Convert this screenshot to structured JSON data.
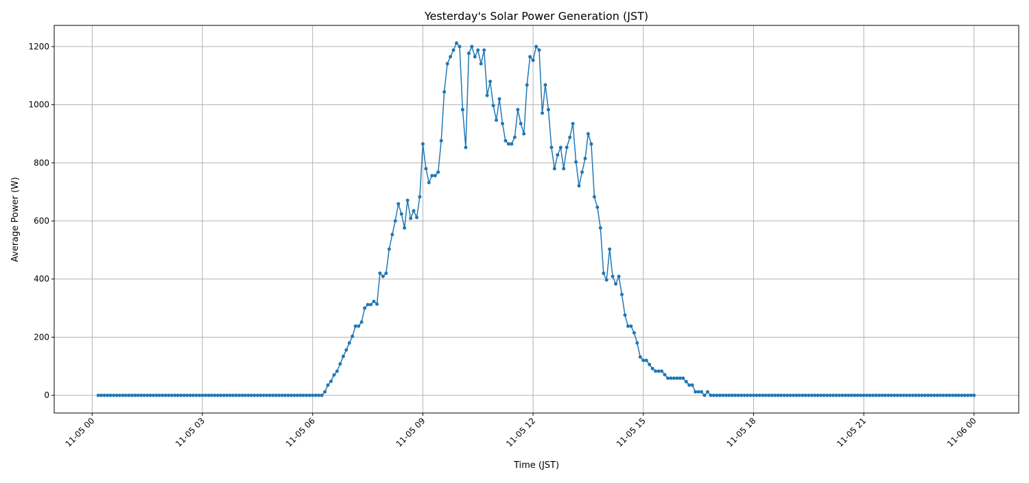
{
  "chart_data": {
    "type": "line",
    "title": "Yesterday's Solar Power Generation (JST)",
    "xlabel": "Time (JST)",
    "ylabel": "Average Power (W)",
    "x_start": "11-05 00:10",
    "x_interval_minutes": 5,
    "xlim": [
      "11-04 22:58",
      "11-06 01:13"
    ],
    "ylim": [
      -61,
      1273
    ],
    "x_ticks": [
      "11-05 00",
      "11-05 03",
      "11-05 06",
      "11-05 09",
      "11-05 12",
      "11-05 15",
      "11-05 18",
      "11-05 21",
      "11-06 00"
    ],
    "y_ticks": [
      0,
      200,
      400,
      600,
      800,
      1000,
      1200
    ],
    "grid": true,
    "marker": "circle",
    "color": "#1f77b4",
    "series": [
      {
        "values": [
          0,
          0,
          0,
          0,
          0,
          0,
          0,
          0,
          0,
          0,
          0,
          0,
          0,
          0,
          0,
          0,
          0,
          0,
          0,
          0,
          0,
          0,
          0,
          0,
          0,
          0,
          0,
          0,
          0,
          0,
          0,
          0,
          0,
          0,
          0,
          0,
          0,
          0,
          0,
          0,
          0,
          0,
          0,
          0,
          0,
          0,
          0,
          0,
          0,
          0,
          0,
          0,
          0,
          0,
          0,
          0,
          0,
          0,
          0,
          0,
          0,
          0,
          0,
          0,
          0,
          0,
          0,
          0,
          0,
          0,
          0,
          0,
          0,
          0,
          12,
          35,
          48,
          70,
          83,
          108,
          134,
          156,
          180,
          203,
          238,
          238,
          252,
          300,
          312,
          312,
          323,
          314,
          420,
          409,
          420,
          503,
          553,
          600,
          659,
          624,
          576,
          671,
          609,
          635,
          612,
          683,
          865,
          780,
          732,
          756,
          756,
          768,
          876,
          1044,
          1141,
          1165,
          1188,
          1212,
          1200,
          983,
          853,
          1177,
          1200,
          1165,
          1188,
          1141,
          1188,
          1032,
          1080,
          997,
          947,
          1020,
          935,
          876,
          865,
          865,
          888,
          983,
          935,
          900,
          1068,
          1165,
          1153,
          1200,
          1188,
          971,
          1068,
          983,
          853,
          780,
          827,
          853,
          780,
          853,
          888,
          935,
          803,
          721,
          768,
          815,
          900,
          865,
          683,
          647,
          576,
          420,
          397,
          503,
          409,
          383,
          409,
          347,
          276,
          238,
          238,
          215,
          180,
          132,
          120,
          120,
          106,
          92,
          83,
          83,
          83,
          71,
          59,
          59,
          59,
          59,
          59,
          59,
          47,
          35,
          35,
          12,
          12,
          12,
          0,
          12,
          0,
          0,
          0,
          0,
          0,
          0,
          0,
          0,
          0,
          0,
          0,
          0,
          0,
          0,
          0,
          0,
          0,
          0,
          0,
          0,
          0,
          0,
          0,
          0,
          0,
          0,
          0,
          0,
          0,
          0,
          0,
          0,
          0,
          0,
          0,
          0,
          0,
          0,
          0,
          0,
          0,
          0,
          0,
          0,
          0,
          0,
          0,
          0,
          0,
          0,
          0,
          0,
          0,
          0,
          0,
          0,
          0,
          0,
          0,
          0,
          0,
          0,
          0,
          0,
          0,
          0,
          0,
          0,
          0,
          0,
          0,
          0,
          0,
          0,
          0,
          0,
          0,
          0,
          0,
          0,
          0,
          0,
          0,
          0,
          0,
          0,
          0
        ]
      }
    ]
  }
}
